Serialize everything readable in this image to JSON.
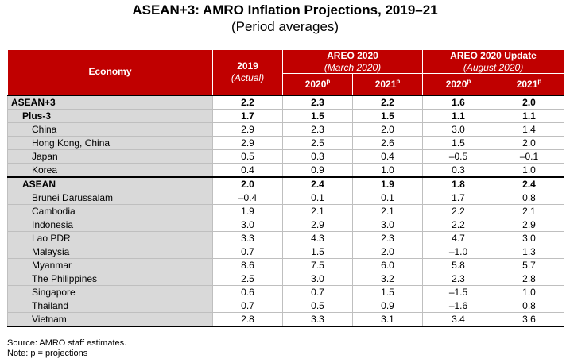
{
  "title": "ASEAN+3: AMRO Inflation Projections, 2019–21",
  "subtitle": "(Period averages)",
  "header": {
    "economy": "Economy",
    "col2019_main": "2019",
    "col2019_sub": "(Actual)",
    "areo_march_main": "AREO 2020",
    "areo_march_sub": "(March 2020)",
    "areo_aug_main": "AREO 2020 Update",
    "areo_aug_sub": "(August 2020)",
    "y2020": "2020",
    "y2021": "2021",
    "proj_mark": "p"
  },
  "rows": [
    {
      "name": "ASEAN+3",
      "values": [
        "2.2",
        "2.3",
        "2.2",
        "1.6",
        "2.0"
      ]
    },
    {
      "name": "Plus-3",
      "values": [
        "1.7",
        "1.5",
        "1.5",
        "1.1",
        "1.1"
      ]
    },
    {
      "name": "China",
      "values": [
        "2.9",
        "2.3",
        "2.0",
        "3.0",
        "1.4"
      ]
    },
    {
      "name": "Hong Kong, China",
      "values": [
        "2.9",
        "2.5",
        "2.6",
        "1.5",
        "2.0"
      ]
    },
    {
      "name": "Japan",
      "values": [
        "0.5",
        "0.3",
        "0.4",
        "–0.5",
        "–0.1"
      ]
    },
    {
      "name": "Korea",
      "values": [
        "0.4",
        "0.9",
        "1.0",
        "0.3",
        "1.0"
      ]
    },
    {
      "name": "ASEAN",
      "values": [
        "2.0",
        "2.4",
        "1.9",
        "1.8",
        "2.4"
      ]
    },
    {
      "name": "Brunei Darussalam",
      "values": [
        "–0.4",
        "0.1",
        "0.1",
        "1.7",
        "0.8"
      ]
    },
    {
      "name": "Cambodia",
      "values": [
        "1.9",
        "2.1",
        "2.1",
        "2.2",
        "2.1"
      ]
    },
    {
      "name": "Indonesia",
      "values": [
        "3.0",
        "2.9",
        "3.0",
        "2.2",
        "2.9"
      ]
    },
    {
      "name": "Lao PDR",
      "values": [
        "3.3",
        "4.3",
        "2.3",
        "4.7",
        "3.0"
      ]
    },
    {
      "name": "Malaysia",
      "values": [
        "0.7",
        "1.5",
        "2.0",
        "–1.0",
        "1.3"
      ]
    },
    {
      "name": "Myanmar",
      "values": [
        "8.6",
        "7.5",
        "6.0",
        "5.8",
        "5.7"
      ]
    },
    {
      "name": "The Philippines",
      "values": [
        "2.5",
        "3.0",
        "3.2",
        "2.3",
        "2.8"
      ]
    },
    {
      "name": "Singapore",
      "values": [
        "0.6",
        "0.7",
        "1.5",
        "–1.5",
        "1.0"
      ]
    },
    {
      "name": "Thailand",
      "values": [
        "0.7",
        "0.5",
        "0.9",
        "–1.6",
        "0.8"
      ]
    },
    {
      "name": "Vietnam",
      "values": [
        "2.8",
        "3.3",
        "3.1",
        "3.4",
        "3.6"
      ]
    }
  ],
  "notes": {
    "source": "Source: AMRO staff estimates.",
    "note": "Note: p = projections"
  }
}
